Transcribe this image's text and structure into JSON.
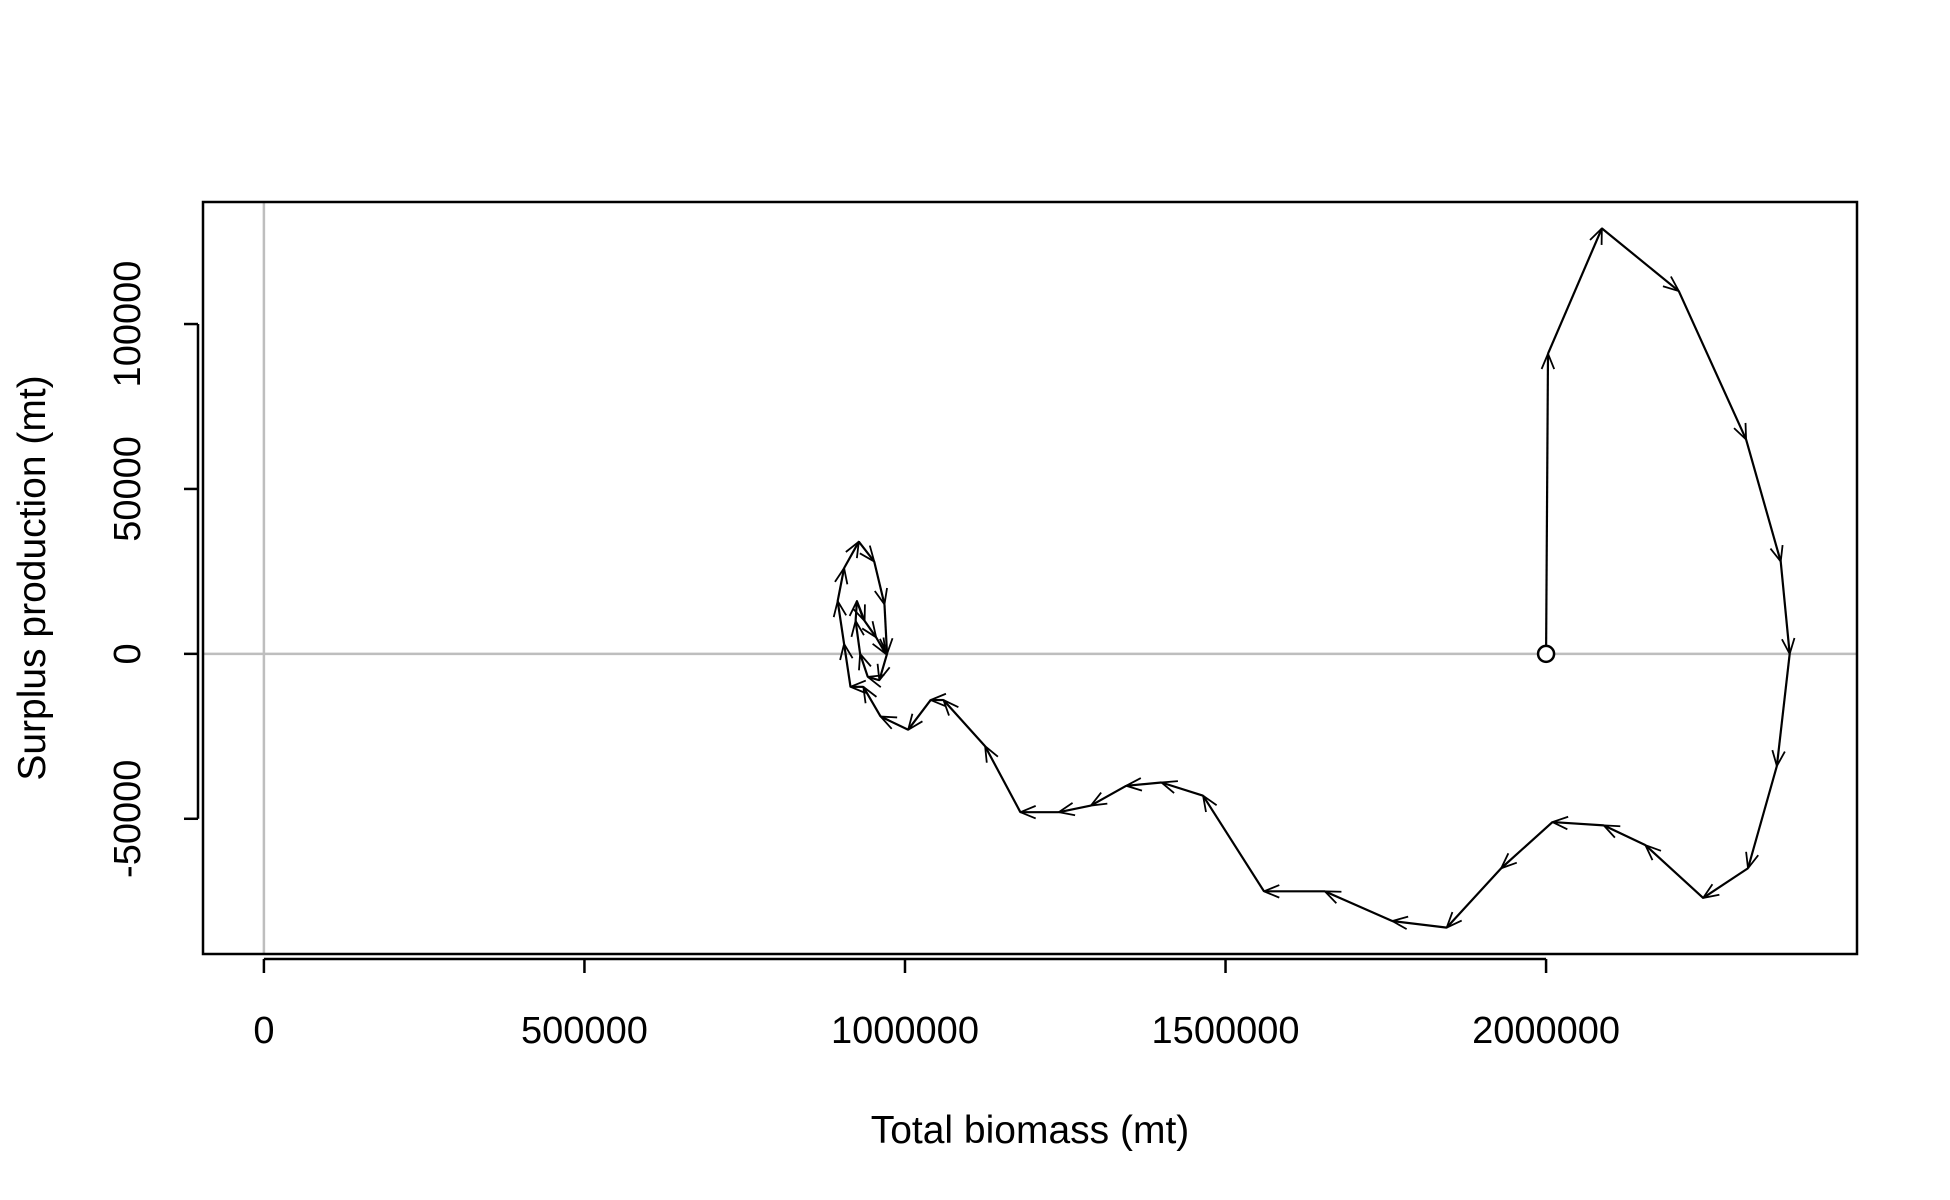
{
  "chart_data": {
    "type": "line",
    "title": "",
    "xlabel": "Total biomass (mt)",
    "ylabel": "Surplus production (mt)",
    "xlim": [
      -95000,
      2485000
    ],
    "ylim": [
      -91000,
      137000
    ],
    "x_ticks": [
      0,
      500000,
      1000000,
      1500000,
      2000000
    ],
    "x_tick_labels": [
      "0",
      "500000",
      "1000000",
      "1500000",
      "2000000"
    ],
    "y_ticks": [
      -50000,
      0,
      50000,
      100000
    ],
    "y_tick_labels": [
      "-50000",
      "0",
      "50000",
      "100000"
    ],
    "reference_lines": {
      "x": 0,
      "y": 0,
      "color": "#bebebe"
    },
    "start_marker": {
      "x": 2000000,
      "y": 0,
      "shape": "open-circle"
    },
    "line_color": "#000000",
    "arrows": true,
    "grid": false,
    "legend": "none",
    "series": [
      {
        "x": [
          2000000,
          2003000,
          2087000,
          2207000,
          2312000,
          2366000,
          2380000,
          2360000,
          2315000,
          2245000,
          2155000,
          2090000,
          2010000,
          1930000,
          1845000,
          1760000,
          1655000,
          1560000,
          1465000,
          1400000,
          1345000,
          1290000,
          1240000,
          1180000,
          1125000,
          1060000,
          1040000,
          1005000,
          962000,
          935000,
          915000,
          905000,
          895000,
          905000,
          928000,
          952000,
          968000,
          972000,
          960000,
          942000,
          930000,
          923000,
          925000,
          937000,
          955000,
          970000
        ],
        "y": [
          0,
          91000,
          129000,
          110000,
          65000,
          28000,
          0,
          -34000,
          -65000,
          -74000,
          -58000,
          -52000,
          -51000,
          -65000,
          -83000,
          -81000,
          -72000,
          -72000,
          -43000,
          -39000,
          -40000,
          -46000,
          -48000,
          -48000,
          -28000,
          -14000,
          -14000,
          -23000,
          -19000,
          -10000,
          -10000,
          3000,
          16000,
          26000,
          34000,
          28000,
          15000,
          0,
          -8000,
          -7000,
          0,
          10000,
          16000,
          10000,
          5000,
          0
        ]
      }
    ]
  }
}
